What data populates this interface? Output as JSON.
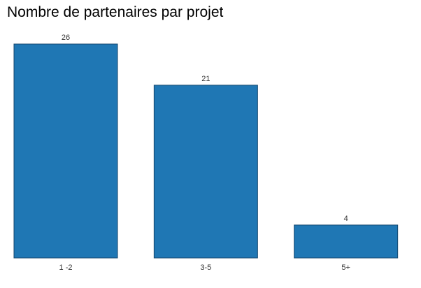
{
  "chart_data": {
    "type": "bar",
    "title": "Nombre de partenaires par projet",
    "categories": [
      "1 -2",
      "3-5",
      "5+"
    ],
    "values": [
      26,
      21,
      4
    ],
    "data_labels": [
      "26",
      "21",
      "4"
    ],
    "xlabel": "",
    "ylabel": "",
    "ylim": [
      0,
      26
    ],
    "grid": false,
    "legend": "none",
    "bar_color": "#1f77b4",
    "bar_edge_color": "#14466b"
  }
}
